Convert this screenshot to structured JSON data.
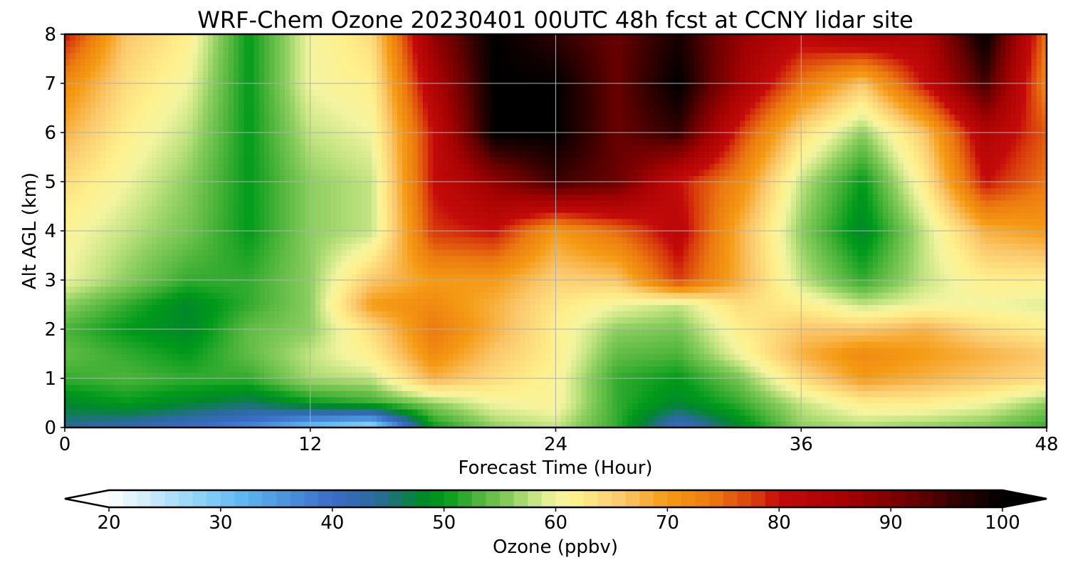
{
  "chart_data": {
    "type": "heatmap",
    "title": "WRF-Chem Ozone  20230401 00UTC 48h fcst at CCNY lidar site",
    "xlabel": "Forecast Time (Hour)",
    "ylabel": "Alt AGL (km)",
    "xlim": [
      0,
      48
    ],
    "ylim": [
      0,
      8
    ],
    "xticks": [
      0,
      12,
      24,
      36,
      48
    ],
    "yticks": [
      0,
      1,
      2,
      3,
      4,
      5,
      6,
      7,
      8
    ],
    "grid": true,
    "x": [
      0,
      3,
      6,
      9,
      12,
      15,
      18,
      21,
      24,
      27,
      30,
      33,
      36,
      39,
      42,
      45,
      48
    ],
    "y": [
      0,
      0.5,
      1,
      1.5,
      2,
      2.5,
      3,
      4,
      5,
      6,
      7,
      8
    ],
    "z": [
      [
        44,
        42,
        40,
        37,
        30,
        26,
        50,
        56,
        58,
        52,
        40,
        48,
        56,
        57,
        56,
        55,
        52
      ],
      [
        48,
        50,
        48,
        46,
        50,
        52,
        56,
        60,
        61,
        52,
        48,
        52,
        58,
        62,
        62,
        60,
        56
      ],
      [
        52,
        53,
        52,
        52,
        57,
        58,
        68,
        64,
        61,
        52,
        50,
        55,
        64,
        70,
        68,
        66,
        64
      ],
      [
        54,
        52,
        50,
        54,
        58,
        62,
        72,
        66,
        62,
        54,
        53,
        60,
        68,
        72,
        70,
        68,
        66
      ],
      [
        53,
        50,
        48,
        54,
        56,
        64,
        74,
        68,
        62,
        56,
        55,
        62,
        66,
        66,
        68,
        64,
        62
      ],
      [
        56,
        52,
        48,
        52,
        56,
        70,
        72,
        68,
        63,
        60,
        58,
        64,
        62,
        58,
        60,
        60,
        59
      ],
      [
        60,
        56,
        52,
        52,
        56,
        66,
        70,
        70,
        65,
        66,
        78,
        68,
        58,
        52,
        58,
        62,
        62
      ],
      [
        61,
        58,
        55,
        50,
        56,
        58,
        78,
        80,
        70,
        75,
        82,
        68,
        56,
        48,
        58,
        68,
        70
      ],
      [
        64,
        60,
        56,
        50,
        56,
        58,
        80,
        88,
        95,
        92,
        80,
        72,
        58,
        50,
        62,
        80,
        74
      ],
      [
        68,
        62,
        58,
        50,
        58,
        60,
        80,
        100,
        100,
        92,
        96,
        78,
        64,
        56,
        66,
        84,
        76
      ],
      [
        72,
        64,
        60,
        50,
        60,
        62,
        84,
        100,
        100,
        92,
        100,
        86,
        74,
        66,
        80,
        95,
        72
      ],
      [
        80,
        66,
        62,
        50,
        60,
        64,
        88,
        100,
        96,
        92,
        98,
        88,
        82,
        86,
        84,
        100,
        74
      ]
    ],
    "colorbar": {
      "label": "Ozone  (ppbv)",
      "min": 20,
      "max": 100,
      "ticks": [
        20,
        30,
        40,
        50,
        60,
        70,
        80,
        90,
        100
      ],
      "extend": "both",
      "stops": [
        {
          "v": 20,
          "c": "#ffffff"
        },
        {
          "v": 28,
          "c": "#8fd3f7"
        },
        {
          "v": 32,
          "c": "#5cb8f0"
        },
        {
          "v": 40,
          "c": "#3a6cc8"
        },
        {
          "v": 44,
          "c": "#2a6a9a"
        },
        {
          "v": 48,
          "c": "#00882a"
        },
        {
          "v": 50,
          "c": "#009a1a"
        },
        {
          "v": 53,
          "c": "#4cb43a"
        },
        {
          "v": 56,
          "c": "#8cce60"
        },
        {
          "v": 58,
          "c": "#c4e482"
        },
        {
          "v": 60,
          "c": "#f4f4a0"
        },
        {
          "v": 62,
          "c": "#fff08c"
        },
        {
          "v": 66,
          "c": "#fbc86c"
        },
        {
          "v": 70,
          "c": "#f59a14"
        },
        {
          "v": 74,
          "c": "#ec7a10"
        },
        {
          "v": 78,
          "c": "#d83a0c"
        },
        {
          "v": 80,
          "c": "#c40a0a"
        },
        {
          "v": 86,
          "c": "#a60202"
        },
        {
          "v": 92,
          "c": "#6a0000"
        },
        {
          "v": 96,
          "c": "#300000"
        },
        {
          "v": 100,
          "c": "#000000"
        }
      ]
    }
  }
}
